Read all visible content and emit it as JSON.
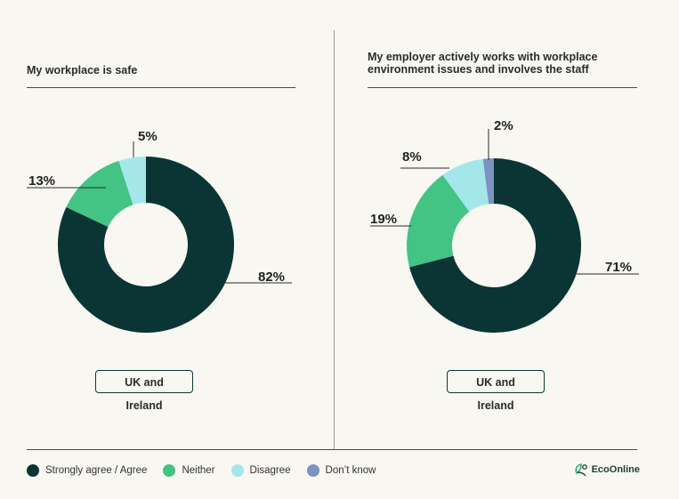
{
  "colors": {
    "strongly_agree": "#0a3534",
    "neither": "#43c384",
    "disagree": "#a4e7ea",
    "dont_know": "#7d92c1"
  },
  "chart_data": [
    {
      "type": "pie",
      "title": "My workplace is safe",
      "region": "UK and Ireland",
      "slices": [
        {
          "key": "strongly_agree",
          "name": "Strongly agree / Agree",
          "value": 82,
          "label": "82%"
        },
        {
          "key": "neither",
          "name": "Neither",
          "value": 13,
          "label": "13%"
        },
        {
          "key": "disagree",
          "name": "Disagree",
          "value": 5,
          "label": "5%"
        }
      ]
    },
    {
      "type": "pie",
      "title": "My employer actively works with workplace environment issues and involves the staff",
      "region": "UK and Ireland",
      "slices": [
        {
          "key": "strongly_agree",
          "name": "Strongly agree / Agree",
          "value": 71,
          "label": "71%"
        },
        {
          "key": "neither",
          "name": "Neither",
          "value": 19,
          "label": "19%"
        },
        {
          "key": "disagree",
          "name": "Disagree",
          "value": 8,
          "label": "8%"
        },
        {
          "key": "dont_know",
          "name": "Don’t know",
          "value": 2,
          "label": "2%"
        }
      ]
    }
  ],
  "legend": [
    {
      "key": "strongly_agree",
      "label": "Strongly agree / Agree"
    },
    {
      "key": "neither",
      "label": "Neither"
    },
    {
      "key": "disagree",
      "label": "Disagree"
    },
    {
      "key": "dont_know",
      "label": "Don’t know"
    }
  ],
  "brand": {
    "name": "EcoOnline",
    "icon": "ecoonline-logo-icon"
  }
}
